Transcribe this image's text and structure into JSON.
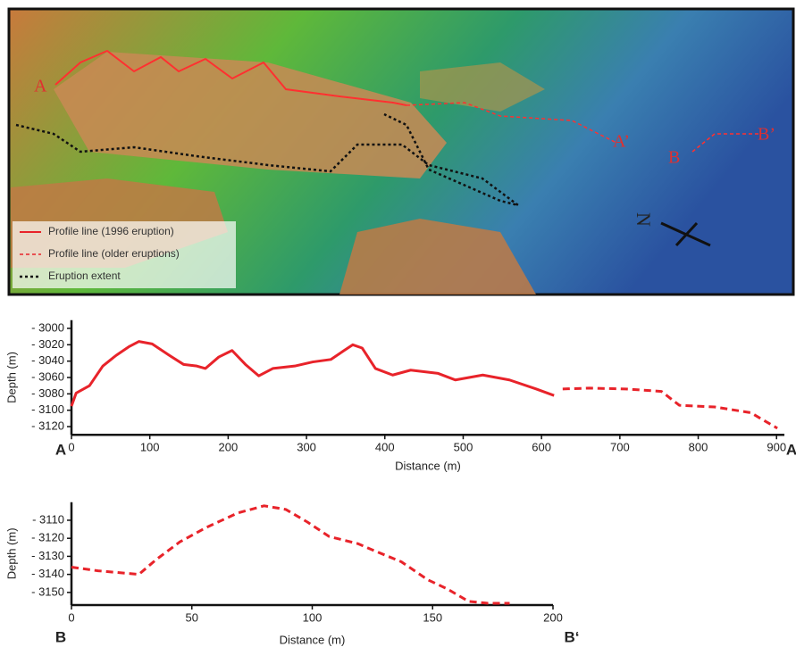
{
  "map": {
    "labels": [
      "A",
      "A’",
      "B",
      "B’"
    ],
    "north": "N",
    "legend": [
      "Profile line (1996 eruption)",
      "Profile line (older eruptions)",
      "Eruption extent"
    ]
  },
  "chart_data": [
    {
      "type": "line",
      "ylabel": "Depth (m)",
      "xlabel": "Distance (m)",
      "corner_labels": [
        "A",
        "A"
      ],
      "xlim": [
        0,
        910
      ],
      "xticks": [
        0,
        100,
        200,
        300,
        400,
        500,
        600,
        700,
        800,
        900
      ],
      "ylim": [
        -3130,
        -2990
      ],
      "yticks": [
        {
          "value": -3000,
          "label": "- 3000"
        },
        {
          "value": -3020,
          "label": "- 3020"
        },
        {
          "value": -3040,
          "label": "- 3040"
        },
        {
          "value": -3060,
          "label": "- 3060"
        },
        {
          "value": -3080,
          "label": "- 3080"
        },
        {
          "value": -3100,
          "label": "- 3100"
        },
        {
          "value": -3120,
          "label": "- 3120"
        }
      ],
      "series": [
        {
          "name": "Profile line (1996 eruption)",
          "color": "#e8232a",
          "dashed": false,
          "x": [
            0,
            6,
            23,
            40,
            57,
            74,
            86,
            103,
            125,
            143,
            160,
            171,
            188,
            205,
            222,
            239,
            257,
            285,
            308,
            331,
            348,
            359,
            371,
            388,
            410,
            433,
            468,
            490,
            525,
            559,
            593,
            616
          ],
          "values": [
            -3095,
            -3079,
            -3070,
            -3046,
            -3033,
            -3022,
            -3016,
            -3019,
            -3033,
            -3044,
            -3046,
            -3049,
            -3035,
            -3027,
            -3044,
            -3058,
            -3049,
            -3046,
            -3041,
            -3038,
            -3027,
            -3020,
            -3024,
            -3049,
            -3057,
            -3051,
            -3055,
            -3063,
            -3057,
            -3063,
            -3074,
            -3082
          ]
        },
        {
          "name": "Profile line (older eruptions)",
          "color": "#e8232a",
          "dashed": true,
          "x": [
            627,
            661,
            707,
            753,
            776,
            821,
            867,
            901
          ],
          "values": [
            -3074,
            -3073,
            -3074,
            -3077,
            -3094,
            -3096,
            -3103,
            -3122
          ]
        }
      ]
    },
    {
      "type": "line",
      "ylabel": "Depth (m)",
      "xlabel": "Distance (m)",
      "corner_labels": [
        "B",
        "B‘"
      ],
      "xlim": [
        0,
        200
      ],
      "xticks": [
        0,
        50,
        100,
        150,
        200
      ],
      "ylim": [
        -3157,
        -3100
      ],
      "yticks": [
        {
          "value": -3110,
          "label": "- 3110"
        },
        {
          "value": -3120,
          "label": "- 3120"
        },
        {
          "value": -3130,
          "label": "- 3130"
        },
        {
          "value": -3140,
          "label": "- 3140"
        },
        {
          "value": -3150,
          "label": "- 3150"
        }
      ],
      "series": [
        {
          "name": "Profile line (older eruptions)",
          "color": "#e8232a",
          "dashed": true,
          "x": [
            0,
            11,
            28,
            35,
            45,
            56,
            69,
            80,
            89,
            98,
            107,
            119,
            126,
            137,
            148,
            156,
            165,
            173,
            182
          ],
          "values": [
            -3136,
            -3138,
            -3140,
            -3132,
            -3122,
            -3114,
            -3106,
            -3102,
            -3104,
            -3111,
            -3119,
            -3123,
            -3127,
            -3133,
            -3143,
            -3148,
            -3155,
            -3156,
            -3156
          ]
        }
      ]
    }
  ]
}
